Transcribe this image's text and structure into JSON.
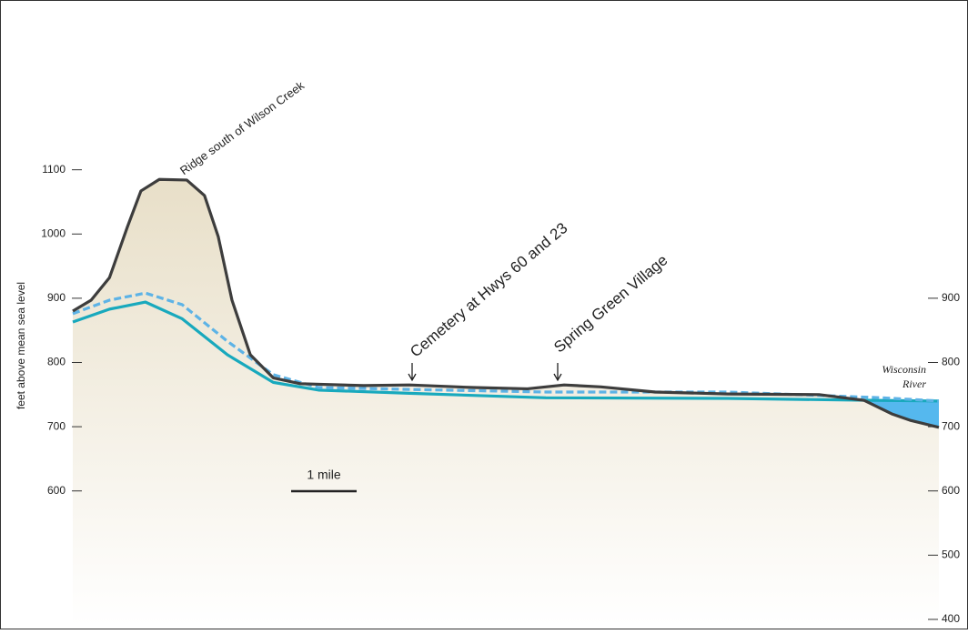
{
  "chart_data": {
    "type": "line",
    "ylabel": "feet above mean sea level",
    "xlim": [
      0,
      13.22
    ],
    "ylim": [
      390,
      1353
    ],
    "yticks": [
      600,
      700,
      800,
      900,
      1000,
      1100
    ],
    "y2lim": [
      390,
      1353
    ],
    "y2ticks": [
      400,
      500,
      600,
      700,
      800,
      900
    ],
    "series": [
      {
        "color": "#3d3d3d",
        "dash": false,
        "x": [
          0,
          0.28,
          0.56,
          0.83,
          1.04,
          1.32,
          1.74,
          2.01,
          2.22,
          2.43,
          2.71,
          3.06,
          3.47,
          4.44,
          5.14,
          6.11,
          6.94,
          7.5,
          8.06,
          8.89,
          10,
          11.39,
          12.08,
          12.5,
          12.78,
          13.22
        ],
        "values": [
          880,
          897,
          932,
          1010,
          1067,
          1085,
          1084,
          1060,
          996,
          897,
          812,
          776,
          767,
          764,
          765,
          761,
          759,
          765,
          762,
          754,
          751,
          750,
          741,
          720,
          710,
          699
        ]
      },
      {
        "color": "#5db3e6",
        "dash": true,
        "x": [
          0,
          0.56,
          1.11,
          1.67,
          2.36,
          3.06,
          3.75,
          5.14,
          7.22,
          10,
          12.36,
          13.22
        ],
        "values": [
          876,
          897,
          908,
          890,
          833,
          781,
          761,
          758,
          754,
          754,
          745,
          740
        ]
      },
      {
        "color": "#18a9bd",
        "dash": false,
        "x": [
          0,
          0.56,
          1.11,
          1.67,
          2.36,
          3.06,
          3.75,
          5.14,
          7.22,
          10,
          12.22,
          13.22
        ],
        "values": [
          863,
          883,
          894,
          868,
          812,
          769,
          757,
          752,
          745,
          744,
          741,
          740
        ]
      }
    ],
    "annotations": [
      "Ridge south of Wilson Creek",
      "Cemetery at Hwys 60 and 23",
      "Spring Green Village"
    ],
    "river_label": [
      "Wisconsin",
      "River"
    ],
    "scale_label": "1 mile",
    "scale_length": 1
  }
}
